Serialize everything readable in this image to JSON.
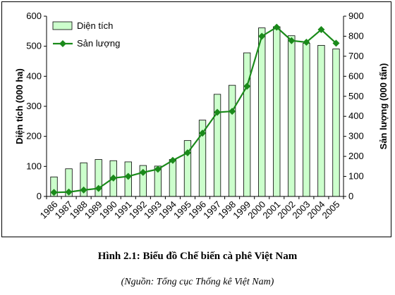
{
  "chart_data": {
    "type": "bar+line",
    "categories": [
      "1986",
      "1987",
      "1988",
      "1989",
      "1990",
      "1991",
      "1992",
      "1993",
      "1994",
      "1995",
      "1996",
      "1997",
      "1998",
      "1999",
      "2000",
      "2001",
      "2002",
      "2003",
      "2004",
      "2005"
    ],
    "series": [
      {
        "name": "Diện tích",
        "type": "bar",
        "axis": "left",
        "color": "#ccffcc",
        "values": [
          65,
          92,
          112,
          123,
          119,
          115,
          103,
          101,
          123,
          186,
          254,
          340,
          370,
          478,
          561,
          565,
          535,
          510,
          503,
          491
        ]
      },
      {
        "name": "Sản lượng",
        "type": "line",
        "axis": "right",
        "color": "#1a8a1a",
        "marker": "diamond",
        "values": [
          20,
          22,
          32,
          40,
          92,
          100,
          120,
          136,
          180,
          218,
          316,
          420,
          425,
          550,
          800,
          845,
          778,
          770,
          833,
          765
        ]
      }
    ],
    "y_left": {
      "label": "Diện tích (000 ha)",
      "min": 0,
      "max": 600,
      "ticks": [
        0,
        100,
        200,
        300,
        400,
        500,
        600
      ]
    },
    "y_right": {
      "label": "Sản lượng (000 tấn)",
      "min": 0,
      "max": 900,
      "ticks": [
        0,
        100,
        200,
        300,
        400,
        500,
        600,
        700,
        800,
        900
      ]
    },
    "legend": {
      "placement": "top-left"
    },
    "grid": false
  },
  "caption": "Hình 2.1: Biểu đồ Chế biến cà phê Việt Nam",
  "source": "(Nguồn: Tổng cục Thống kê Việt Nam)"
}
